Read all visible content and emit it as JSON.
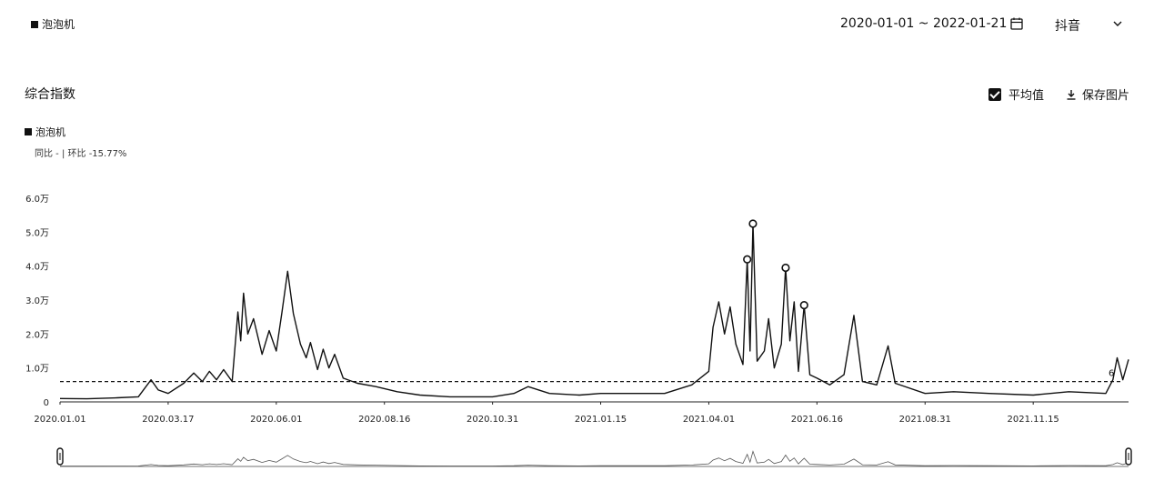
{
  "header": {
    "keyword": "泡泡机",
    "date_range": "2020-01-01 ~ 2022-01-21",
    "platform": "抖音",
    "icons": [
      "calendar-icon",
      "chevron-down-icon"
    ]
  },
  "section": {
    "title": "综合指数",
    "avg_label": "平均值",
    "avg_checked": true,
    "save_label": "保存图片"
  },
  "legend": {
    "series_name": "泡泡机",
    "stats": "同比 - | 环比 -15.77%"
  },
  "chart_data": {
    "type": "line",
    "y_ticks": [
      "0",
      "1.0万",
      "2.0万",
      "3.0万",
      "4.0万",
      "5.0万",
      "6.0万"
    ],
    "ylim": [
      0,
      60000
    ],
    "x_ticks": [
      "2020.01.01",
      "2020.03.17",
      "2020.06.01",
      "2020.08.16",
      "2020.10.31",
      "2021.01.15",
      "2021.04.01",
      "2021.06.16",
      "2021.08.31",
      "2021.11.15"
    ],
    "x_range": [
      "2020-01-01",
      "2022-01-21"
    ],
    "average": 6000,
    "end_label": "6",
    "series": [
      {
        "name": "泡泡机",
        "points": [
          [
            "2020-01-01",
            1000
          ],
          [
            "2020-01-20",
            900
          ],
          [
            "2020-02-10",
            1200
          ],
          [
            "2020-02-25",
            1500
          ],
          [
            "2020-03-05",
            6500
          ],
          [
            "2020-03-10",
            3500
          ],
          [
            "2020-03-17",
            2500
          ],
          [
            "2020-03-28",
            5500
          ],
          [
            "2020-04-04",
            8500
          ],
          [
            "2020-04-10",
            6000
          ],
          [
            "2020-04-15",
            9000
          ],
          [
            "2020-04-20",
            6500
          ],
          [
            "2020-04-25",
            9500
          ],
          [
            "2020-05-01",
            6000
          ],
          [
            "2020-05-05",
            26500
          ],
          [
            "2020-05-07",
            18000
          ],
          [
            "2020-05-09",
            32000
          ],
          [
            "2020-05-12",
            20000
          ],
          [
            "2020-05-16",
            24500
          ],
          [
            "2020-05-22",
            14000
          ],
          [
            "2020-05-27",
            21000
          ],
          [
            "2020-06-01",
            15000
          ],
          [
            "2020-06-05",
            26500
          ],
          [
            "2020-06-09",
            38500
          ],
          [
            "2020-06-13",
            26000
          ],
          [
            "2020-06-18",
            17000
          ],
          [
            "2020-06-22",
            13000
          ],
          [
            "2020-06-25",
            17500
          ],
          [
            "2020-06-30",
            9500
          ],
          [
            "2020-07-04",
            15500
          ],
          [
            "2020-07-08",
            10000
          ],
          [
            "2020-07-12",
            14000
          ],
          [
            "2020-07-18",
            7000
          ],
          [
            "2020-07-28",
            5500
          ],
          [
            "2020-08-10",
            4500
          ],
          [
            "2020-08-25",
            3000
          ],
          [
            "2020-09-10",
            2000
          ],
          [
            "2020-10-01",
            1500
          ],
          [
            "2020-10-31",
            1500
          ],
          [
            "2020-11-15",
            2500
          ],
          [
            "2020-11-25",
            4500
          ],
          [
            "2020-12-10",
            2500
          ],
          [
            "2020-12-31",
            2000
          ],
          [
            "2021-01-15",
            2500
          ],
          [
            "2021-02-10",
            2500
          ],
          [
            "2021-03-01",
            2500
          ],
          [
            "2021-03-20",
            5000
          ],
          [
            "2021-04-01",
            9000
          ],
          [
            "2021-04-04",
            22000
          ],
          [
            "2021-04-08",
            29500
          ],
          [
            "2021-04-12",
            20000
          ],
          [
            "2021-04-16",
            28000
          ],
          [
            "2021-04-20",
            17000
          ],
          [
            "2021-04-25",
            11000
          ],
          [
            "2021-04-28",
            42000
          ],
          [
            "2021-04-30",
            15000
          ],
          [
            "2021-05-02",
            52500
          ],
          [
            "2021-05-05",
            12000
          ],
          [
            "2021-05-10",
            15000
          ],
          [
            "2021-05-13",
            24500
          ],
          [
            "2021-05-17",
            10000
          ],
          [
            "2021-05-22",
            17000
          ],
          [
            "2021-05-25",
            39500
          ],
          [
            "2021-05-28",
            18000
          ],
          [
            "2021-05-31",
            29500
          ],
          [
            "2021-06-03",
            9000
          ],
          [
            "2021-06-07",
            28500
          ],
          [
            "2021-06-11",
            8000
          ],
          [
            "2021-06-16",
            7000
          ],
          [
            "2021-06-25",
            5000
          ],
          [
            "2021-07-05",
            8000
          ],
          [
            "2021-07-12",
            25500
          ],
          [
            "2021-07-18",
            6000
          ],
          [
            "2021-07-28",
            5000
          ],
          [
            "2021-08-05",
            16500
          ],
          [
            "2021-08-10",
            5500
          ],
          [
            "2021-08-31",
            2500
          ],
          [
            "2021-09-20",
            3000
          ],
          [
            "2021-10-15",
            2500
          ],
          [
            "2021-11-15",
            2000
          ],
          [
            "2021-12-10",
            3000
          ],
          [
            "2022-01-05",
            2500
          ],
          [
            "2022-01-10",
            6500
          ],
          [
            "2022-01-13",
            13000
          ],
          [
            "2022-01-17",
            6500
          ],
          [
            "2022-01-21",
            12500
          ]
        ],
        "markers": [
          [
            "2021-04-28",
            42000
          ],
          [
            "2021-05-02",
            52500
          ],
          [
            "2021-05-25",
            39500
          ],
          [
            "2021-06-07",
            28500
          ]
        ]
      }
    ]
  }
}
